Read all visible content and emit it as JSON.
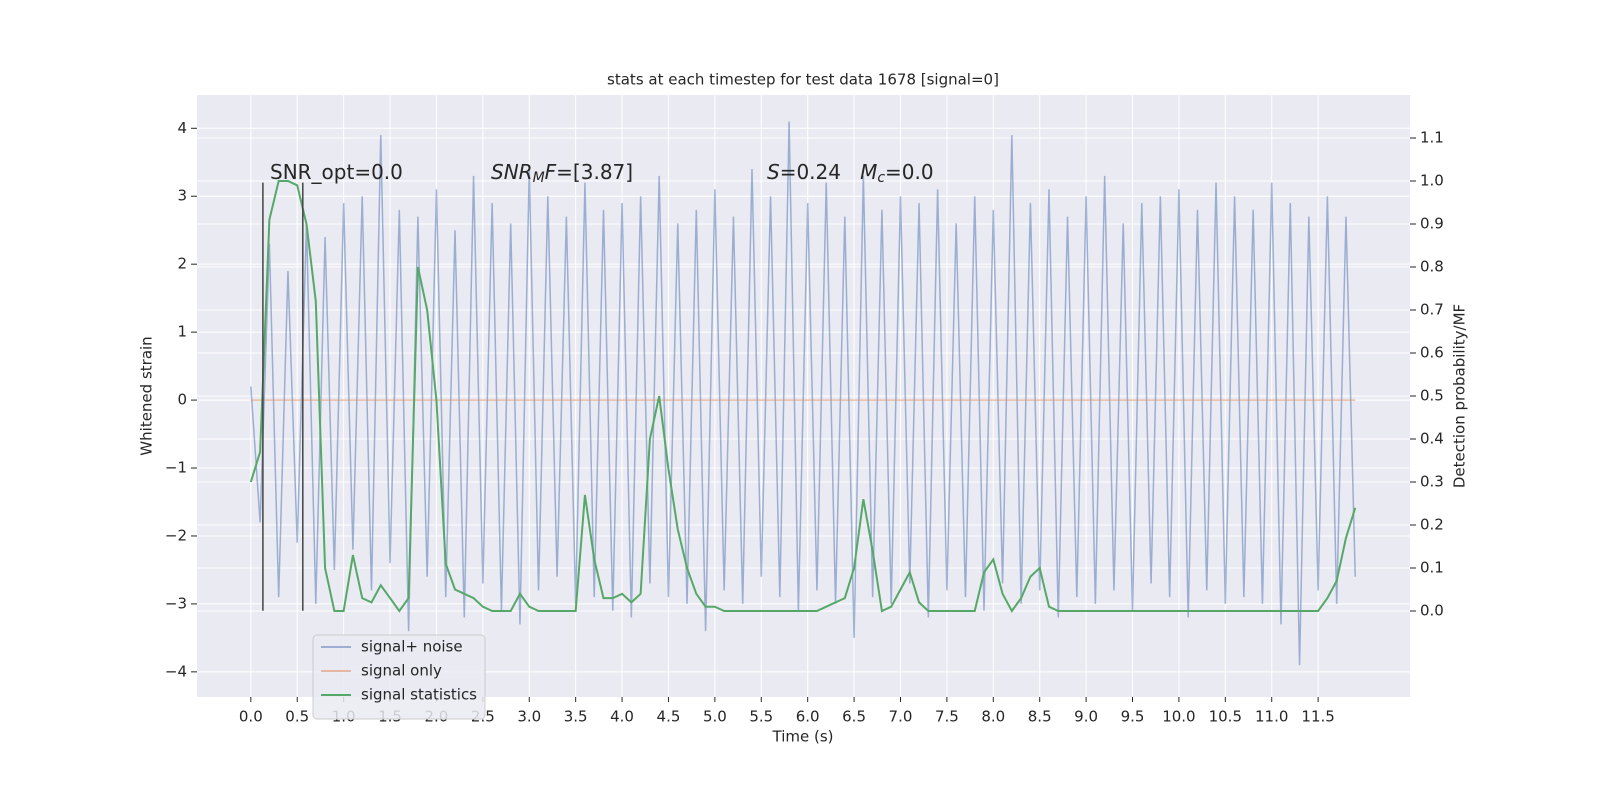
{
  "chart_data": {
    "type": "line",
    "title": "stats at each timestep for test data 1678 [signal=0]",
    "xlabel": "Time (s)",
    "ylabel": "Whitened strain",
    "y2label": "Detection probability/MF",
    "x": [
      0,
      0.1,
      0.2,
      0.3,
      0.4,
      0.5,
      0.6,
      0.7,
      0.8,
      0.9,
      1,
      1.1,
      1.2,
      1.3,
      1.4,
      1.5,
      1.6,
      1.7,
      1.8,
      1.9,
      2,
      2.1,
      2.2,
      2.3,
      2.4,
      2.5,
      2.6,
      2.7,
      2.8,
      2.9,
      3,
      3.1,
      3.2,
      3.3,
      3.4,
      3.5,
      3.6,
      3.7,
      3.8,
      3.9,
      4,
      4.1,
      4.2,
      4.3,
      4.4,
      4.5,
      4.6,
      4.7,
      4.8,
      4.9,
      5,
      5.1,
      5.2,
      5.3,
      5.4,
      5.5,
      5.6,
      5.7,
      5.8,
      5.9,
      6,
      6.1,
      6.2,
      6.3,
      6.4,
      6.5,
      6.6,
      6.7,
      6.8,
      6.9,
      7,
      7.1,
      7.2,
      7.3,
      7.4,
      7.5,
      7.6,
      7.7,
      7.8,
      7.9,
      8,
      8.1,
      8.2,
      8.3,
      8.4,
      8.5,
      8.6,
      8.7,
      8.8,
      8.9,
      9,
      9.1,
      9.2,
      9.3,
      9.4,
      9.5,
      9.6,
      9.7,
      9.8,
      9.9,
      10,
      10.1,
      10.2,
      10.3,
      10.4,
      10.5,
      10.6,
      10.7,
      10.8,
      10.9,
      11,
      11.1,
      11.2,
      11.3,
      11.4,
      11.5,
      11.6,
      11.7,
      11.8,
      11.9
    ],
    "series": [
      {
        "name": "signal+ noise",
        "color": "#4c72b0",
        "alpha": 0.5,
        "axis": "y",
        "values": [
          0.2,
          -1.8,
          2.3,
          -2.9,
          1.9,
          -2.1,
          2.6,
          -3.0,
          2.4,
          -2.5,
          2.9,
          -2.2,
          3.0,
          -2.8,
          3.9,
          -2.4,
          2.8,
          -3.4,
          2.7,
          -2.6,
          3.1,
          -2.9,
          2.5,
          -3.2,
          3.3,
          -2.7,
          2.9,
          -3.1,
          2.6,
          -3.3,
          3.4,
          -2.8,
          3.0,
          -2.6,
          2.7,
          -3.0,
          3.2,
          -2.9,
          2.8,
          -3.1,
          2.9,
          -3.2,
          3.0,
          -2.7,
          3.3,
          -2.9,
          2.6,
          -3.0,
          2.8,
          -3.4,
          3.1,
          -2.8,
          2.7,
          -3.0,
          3.4,
          -2.6,
          3.0,
          -2.9,
          4.1,
          -3.1,
          2.9,
          -2.8,
          3.2,
          -3.0,
          2.7,
          -3.5,
          3.3,
          -2.9,
          2.8,
          -3.0,
          3.0,
          -2.7,
          2.9,
          -3.2,
          3.1,
          -2.8,
          2.6,
          -2.9,
          3.0,
          -3.1,
          2.8,
          -2.7,
          3.9,
          -3.0,
          2.9,
          -2.8,
          3.1,
          -3.2,
          2.7,
          -2.9,
          3.0,
          -3.0,
          3.3,
          -2.8,
          2.6,
          -3.1,
          2.9,
          -2.7,
          3.0,
          -2.9,
          3.1,
          -3.2,
          2.8,
          -2.8,
          3.2,
          -3.0,
          3.0,
          -2.9,
          2.8,
          -3.0,
          3.2,
          -3.3,
          2.9,
          -3.9,
          2.7,
          -2.8,
          3.0,
          -3.0,
          2.7,
          -2.6
        ]
      },
      {
        "name": "signal only",
        "color": "#dd8452",
        "alpha": 0.5,
        "axis": "y",
        "values": [
          0,
          0,
          0,
          0,
          0,
          0,
          0,
          0,
          0,
          0,
          0,
          0,
          0,
          0,
          0,
          0,
          0,
          0,
          0,
          0,
          0,
          0,
          0,
          0,
          0,
          0,
          0,
          0,
          0,
          0,
          0,
          0,
          0,
          0,
          0,
          0,
          0,
          0,
          0,
          0,
          0,
          0,
          0,
          0,
          0,
          0,
          0,
          0,
          0,
          0,
          0,
          0,
          0,
          0,
          0,
          0,
          0,
          0,
          0,
          0,
          0,
          0,
          0,
          0,
          0,
          0,
          0,
          0,
          0,
          0,
          0,
          0,
          0,
          0,
          0,
          0,
          0,
          0,
          0,
          0,
          0,
          0,
          0,
          0,
          0,
          0,
          0,
          0,
          0,
          0,
          0,
          0,
          0,
          0,
          0,
          0,
          0,
          0,
          0,
          0,
          0,
          0,
          0,
          0,
          0,
          0,
          0,
          0,
          0,
          0,
          0,
          0,
          0,
          0,
          0,
          0,
          0,
          0,
          0,
          0
        ]
      },
      {
        "name": "signal statistics",
        "color": "#55a868",
        "alpha": 1,
        "axis": "y2",
        "values": [
          0.3,
          0.37,
          0.91,
          1.0,
          1.0,
          0.99,
          0.9,
          0.72,
          0.1,
          0.0,
          0.0,
          0.13,
          0.03,
          0.02,
          0.06,
          0.03,
          0.0,
          0.03,
          0.8,
          0.7,
          0.49,
          0.11,
          0.05,
          0.04,
          0.03,
          0.01,
          0.0,
          0.0,
          0.0,
          0.04,
          0.01,
          0.0,
          0.0,
          0.0,
          0.0,
          0.0,
          0.27,
          0.12,
          0.03,
          0.03,
          0.04,
          0.02,
          0.04,
          0.4,
          0.5,
          0.33,
          0.19,
          0.1,
          0.04,
          0.01,
          0.01,
          0,
          0,
          0,
          0,
          0,
          0,
          0,
          0,
          0,
          0,
          0,
          0.01,
          0.02,
          0.03,
          0.1,
          0.26,
          0.14,
          0.0,
          0.01,
          0.05,
          0.09,
          0.02,
          0,
          0,
          0,
          0,
          0,
          0,
          0.09,
          0.12,
          0.04,
          0.0,
          0.03,
          0.08,
          0.1,
          0.01,
          0,
          0,
          0,
          0,
          0,
          0,
          0,
          0,
          0,
          0,
          0,
          0,
          0,
          0,
          0,
          0,
          0,
          0,
          0,
          0,
          0,
          0,
          0,
          0,
          0,
          0,
          0,
          0,
          0,
          0.03,
          0.07,
          0.17,
          0.24
        ]
      }
    ],
    "vlines": {
      "x": [
        0.13,
        0.56
      ],
      "ymin": -3.1,
      "ymax": 3.2,
      "color": "#444444"
    },
    "annotations": [
      [
        {
          "text": "SNR_opt=0.0",
          "style": "normal"
        }
      ],
      [
        {
          "text": "SNR",
          "style": "italic"
        },
        {
          "text": "M",
          "style": "sub"
        },
        {
          "text": "F",
          "style": "italic"
        },
        {
          "text": "=[3.87]",
          "style": "normal"
        }
      ],
      [
        {
          "text": "S",
          "style": "italic"
        },
        {
          "text": "=0.24   ",
          "style": "normal"
        },
        {
          "text": "M",
          "style": "italic"
        },
        {
          "text": "c",
          "style": "sub"
        },
        {
          "text": "=0.0",
          "style": "normal"
        }
      ]
    ],
    "xlim": [
      -0.58,
      12.49
    ],
    "ylim": [
      -4.37,
      4.49
    ],
    "y2lim": [
      -0.2,
      1.2
    ],
    "xticks": [
      {
        "value": 0,
        "label": "0.0"
      },
      0.5,
      {
        "value": 1,
        "label": "1.0"
      },
      1.5,
      {
        "value": 2,
        "label": "2.0"
      },
      2.5,
      {
        "value": 3,
        "label": "3.0"
      },
      3.5,
      {
        "value": 4,
        "label": "4.0"
      },
      4.5,
      {
        "value": 5,
        "label": "5.0"
      },
      5.5,
      {
        "value": 6,
        "label": "6.0"
      },
      6.5,
      {
        "value": 7,
        "label": "7.0"
      },
      7.5,
      {
        "value": 8,
        "label": "8.0"
      },
      8.5,
      {
        "value": 9,
        "label": "9.0"
      },
      9.5,
      {
        "value": 10,
        "label": "10.0"
      },
      10.5,
      {
        "value": 11,
        "label": "11.0"
      },
      11.5
    ],
    "yticks": [
      {
        "value": -4,
        "label": "−4"
      },
      {
        "value": -3,
        "label": "−3"
      },
      {
        "value": -2,
        "label": "−2"
      },
      {
        "value": -1,
        "label": "−1"
      },
      0,
      1,
      2,
      3,
      4
    ],
    "y2ticks": [
      {
        "value": 0,
        "label": "0.0"
      },
      0.1,
      0.2,
      0.3,
      0.4,
      0.5,
      0.6,
      0.7,
      0.8,
      0.9,
      {
        "value": 1,
        "label": "1.0"
      },
      1.1
    ],
    "grid": true,
    "background": "#eaeaf2",
    "legend": "lower left"
  }
}
